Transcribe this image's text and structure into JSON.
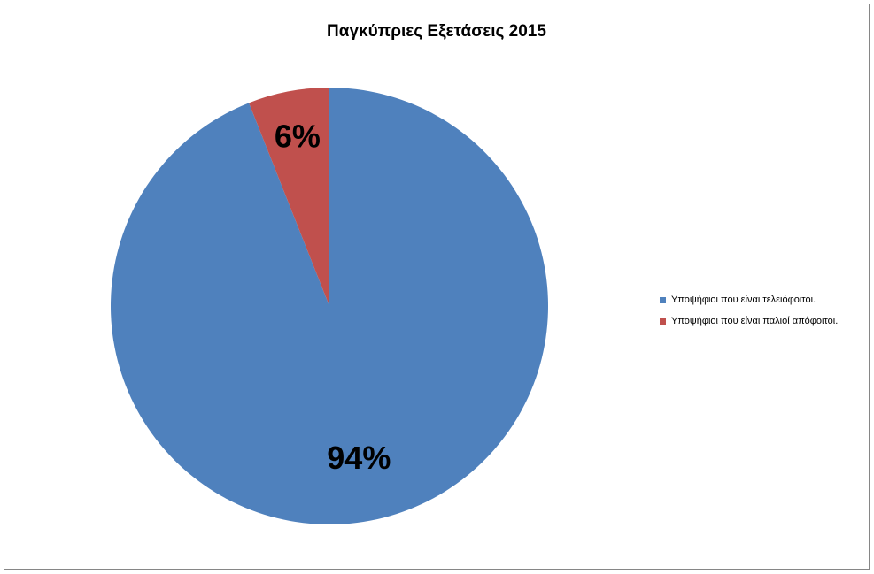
{
  "chart_data": {
    "type": "pie",
    "title": "Παγκύπριες Εξετάσεις 2015",
    "categories": [
      "Υποψήφιοι που είναι τελειόφοιτοι.",
      "Υποψήφιοι που είναι παλιοί απόφοιτοι."
    ],
    "values": [
      94,
      6
    ],
    "labels": [
      "94%",
      "6%"
    ],
    "colors": [
      "#4f81bd",
      "#c0504d"
    ],
    "legend_position": "right"
  }
}
